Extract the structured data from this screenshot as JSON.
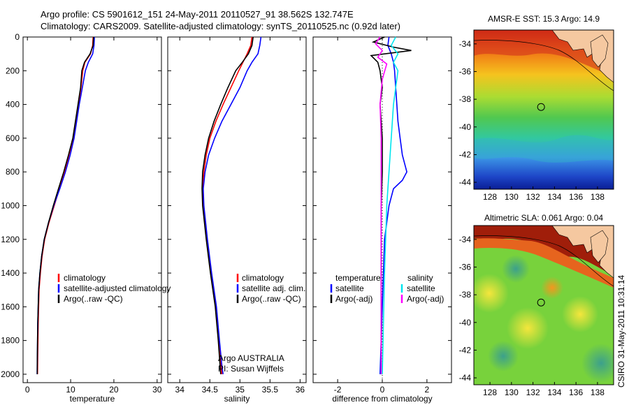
{
  "header": {
    "line1": "Argo profile: CS 5901612_151 24-May-2011 20110527_91 38.562S 132.747E",
    "line2": "Climatology: CARS2009. Satellite-adjusted climatology: synTS_20110525.nc (0.92d later)"
  },
  "side_caption": "CSIRO 31-May-2011 10:31:14",
  "colors": {
    "climatology": "#ff0000",
    "satellite": "#0000ff",
    "argo": "#000000",
    "sal_satellite": "#00e5ee",
    "sal_argo": "#ff00ff"
  },
  "chart_data": [
    {
      "id": "temperature",
      "type": "line",
      "xlabel": "temperature",
      "xlim": [
        -1,
        31
      ],
      "ylim": [
        0,
        2050
      ],
      "xticks": [
        0,
        10,
        20,
        30
      ],
      "yticks": [
        0,
        200,
        400,
        600,
        800,
        1000,
        1200,
        1400,
        1600,
        1800,
        2000
      ],
      "legend": {
        "placement": "lower-middle",
        "entries": [
          "climatology",
          "satellite-adjusted climatology",
          "Argo(..raw -QC)"
        ]
      },
      "series": [
        {
          "name": "climatology",
          "color": "#ff0000",
          "x": [
            15.2,
            15.1,
            14.6,
            13.3,
            12.8,
            12.4,
            11.8,
            11.2,
            10.6,
            9.6,
            8.6,
            7.4,
            6.2,
            5.0,
            4.0,
            3.4,
            3.0,
            2.7,
            2.5,
            2.4,
            2.35
          ],
          "y": [
            0,
            50,
            100,
            150,
            200,
            300,
            400,
            500,
            600,
            700,
            800,
            900,
            1000,
            1100,
            1200,
            1300,
            1400,
            1500,
            1700,
            1900,
            2000
          ]
        },
        {
          "name": "satellite-adjusted climatology",
          "color": "#0000ff",
          "x": [
            15.5,
            15.4,
            15.1,
            14.1,
            13.4,
            12.7,
            12.0,
            11.4,
            10.8,
            9.9,
            8.8,
            7.5,
            6.1,
            4.9,
            3.9,
            3.3,
            2.9,
            2.6,
            2.4,
            2.3,
            2.25
          ],
          "y": [
            0,
            50,
            100,
            150,
            200,
            300,
            400,
            500,
            600,
            700,
            800,
            900,
            1000,
            1100,
            1200,
            1300,
            1400,
            1500,
            1700,
            1900,
            2000
          ]
        },
        {
          "name": "Argo(..raw -QC)",
          "color": "#000000",
          "x": [
            15.3,
            15.2,
            14.5,
            13.2,
            12.6,
            12.3,
            11.7,
            11.1,
            10.5,
            9.5,
            8.4,
            7.2,
            6.0,
            4.9,
            3.9,
            3.3,
            2.9,
            2.6,
            2.4,
            2.3,
            2.28
          ],
          "y": [
            0,
            50,
            100,
            150,
            200,
            300,
            400,
            500,
            600,
            700,
            800,
            900,
            1000,
            1100,
            1200,
            1300,
            1400,
            1500,
            1700,
            1900,
            2000
          ]
        }
      ]
    },
    {
      "id": "salinity",
      "type": "line",
      "xlabel": "salinity",
      "xlim": [
        33.8,
        36.1
      ],
      "ylim": [
        0,
        2050
      ],
      "xticks": [
        34,
        34.5,
        35,
        35.5,
        36
      ],
      "yticks": [
        0,
        200,
        400,
        600,
        800,
        1000,
        1200,
        1400,
        1600,
        1800,
        2000
      ],
      "legend": {
        "placement": "lower-middle",
        "entries": [
          "climatology",
          "satellite adj. clim.",
          "Argo(..raw -QC)"
        ]
      },
      "annotation": [
        "Argo AUSTRALIA",
        "PI: Susan Wijffels"
      ],
      "series": [
        {
          "name": "climatology",
          "color": "#ff0000",
          "x": [
            35.2,
            35.18,
            35.12,
            35.05,
            34.98,
            34.85,
            34.72,
            34.6,
            34.5,
            34.44,
            34.4,
            34.38,
            34.39,
            34.45,
            34.52,
            34.6,
            34.65,
            34.68,
            34.7
          ],
          "y": [
            0,
            50,
            100,
            150,
            200,
            300,
            400,
            500,
            600,
            700,
            800,
            900,
            1000,
            1200,
            1400,
            1600,
            1800,
            1950,
            2000
          ]
        },
        {
          "name": "satellite adj. clim.",
          "color": "#0000ff",
          "x": [
            35.35,
            35.33,
            35.3,
            35.2,
            35.12,
            35.0,
            34.85,
            34.7,
            34.58,
            34.48,
            34.42,
            34.39,
            34.4,
            34.46,
            34.53,
            34.61,
            34.66,
            34.7,
            34.72
          ],
          "y": [
            0,
            50,
            100,
            150,
            200,
            300,
            400,
            500,
            600,
            700,
            800,
            900,
            1000,
            1200,
            1400,
            1600,
            1800,
            1950,
            2000
          ]
        },
        {
          "name": "Argo(..raw -QC)",
          "color": "#000000",
          "x": [
            35.22,
            35.2,
            35.14,
            35.04,
            34.93,
            34.8,
            34.68,
            34.57,
            34.48,
            34.42,
            34.38,
            34.37,
            34.38,
            34.44,
            34.51,
            34.59,
            34.64,
            34.67,
            34.68
          ],
          "y": [
            0,
            50,
            100,
            150,
            200,
            300,
            400,
            500,
            600,
            700,
            800,
            900,
            1000,
            1200,
            1400,
            1600,
            1800,
            1950,
            2000
          ]
        }
      ]
    },
    {
      "id": "difference",
      "type": "line",
      "xlabel": "difference from climatology",
      "xlim": [
        -3.1,
        3.1
      ],
      "ylim": [
        0,
        2050
      ],
      "xticks": [
        -2,
        0,
        2
      ],
      "yticks": [
        0,
        200,
        400,
        600,
        800,
        1000,
        1200,
        1400,
        1600,
        1800,
        2000
      ],
      "legend": {
        "placement": "lower-middle",
        "groups": [
          {
            "title": "temperature",
            "entries": [
              "satellite",
              "Argo(-adj)"
            ]
          },
          {
            "title": "salinity",
            "entries": [
              "satellite",
              "Argo(-adj)"
            ]
          }
        ]
      },
      "series": [
        {
          "name": "temperature satellite",
          "color": "#0000ff",
          "x": [
            0.3,
            0.25,
            0.4,
            0.5,
            0.55,
            0.6,
            0.65,
            0.7,
            0.8,
            0.9,
            1.1,
            0.9,
            0.5,
            0.3,
            0.2,
            0.1,
            0.05,
            0.0,
            -0.05,
            -0.1
          ],
          "y": [
            0,
            50,
            100,
            150,
            200,
            300,
            400,
            500,
            600,
            700,
            800,
            850,
            900,
            1000,
            1100,
            1200,
            1400,
            1600,
            1800,
            2000
          ]
        },
        {
          "name": "temperature Argo(-adj)",
          "color": "#000000",
          "x": [
            0.1,
            -0.4,
            0.5,
            1.3,
            -0.5,
            -0.2,
            -0.1,
            0.0,
            -0.1,
            0.0,
            0.0,
            -0.05,
            -0.05,
            -0.05,
            -0.05
          ],
          "y": [
            0,
            30,
            60,
            80,
            110,
            150,
            200,
            300,
            400,
            600,
            800,
            1000,
            1400,
            1800,
            2000
          ]
        },
        {
          "name": "salinity satellite",
          "color": "#00e5ee",
          "x": [
            0.6,
            0.4,
            0.7,
            0.5,
            0.7,
            0.6,
            0.5,
            0.45,
            0.4,
            0.35,
            0.3,
            0.25,
            0.2,
            0.15,
            0.1,
            0.05,
            0.0
          ],
          "y": [
            0,
            50,
            100,
            150,
            200,
            300,
            400,
            500,
            600,
            700,
            800,
            900,
            1000,
            1200,
            1400,
            1700,
            2000
          ]
        },
        {
          "name": "salinity Argo(-adj)",
          "color": "#ff00ff",
          "x": [
            -0.1,
            -0.3,
            0.0,
            -0.2,
            0.2,
            0.0,
            -0.1,
            -0.05,
            -0.05,
            -0.05,
            -0.05,
            -0.05,
            -0.05
          ],
          "y": [
            0,
            40,
            80,
            120,
            160,
            250,
            400,
            600,
            800,
            1000,
            1400,
            1800,
            2000
          ]
        }
      ]
    },
    {
      "id": "sst_map",
      "type": "heatmap",
      "title": "AMSR-E SST: 15.3  Argo: 14.9",
      "xlim": [
        126.5,
        139.5
      ],
      "ylim": [
        -44.5,
        -33
      ],
      "xticks": [
        128,
        130,
        132,
        134,
        136,
        138
      ],
      "yticks": [
        -34,
        -36,
        -38,
        -40,
        -42,
        -44
      ],
      "marker": {
        "lon": 132.75,
        "lat": -38.56
      }
    },
    {
      "id": "sla_map",
      "type": "heatmap",
      "title": "Altimetric SLA: 0.061  Argo: 0.04",
      "xlim": [
        126.5,
        139.5
      ],
      "ylim": [
        -44.5,
        -33
      ],
      "xticks": [
        128,
        130,
        132,
        134,
        136,
        138
      ],
      "yticks": [
        -34,
        -36,
        -38,
        -40,
        -42,
        -44
      ],
      "marker": {
        "lon": 132.75,
        "lat": -38.56
      }
    }
  ]
}
